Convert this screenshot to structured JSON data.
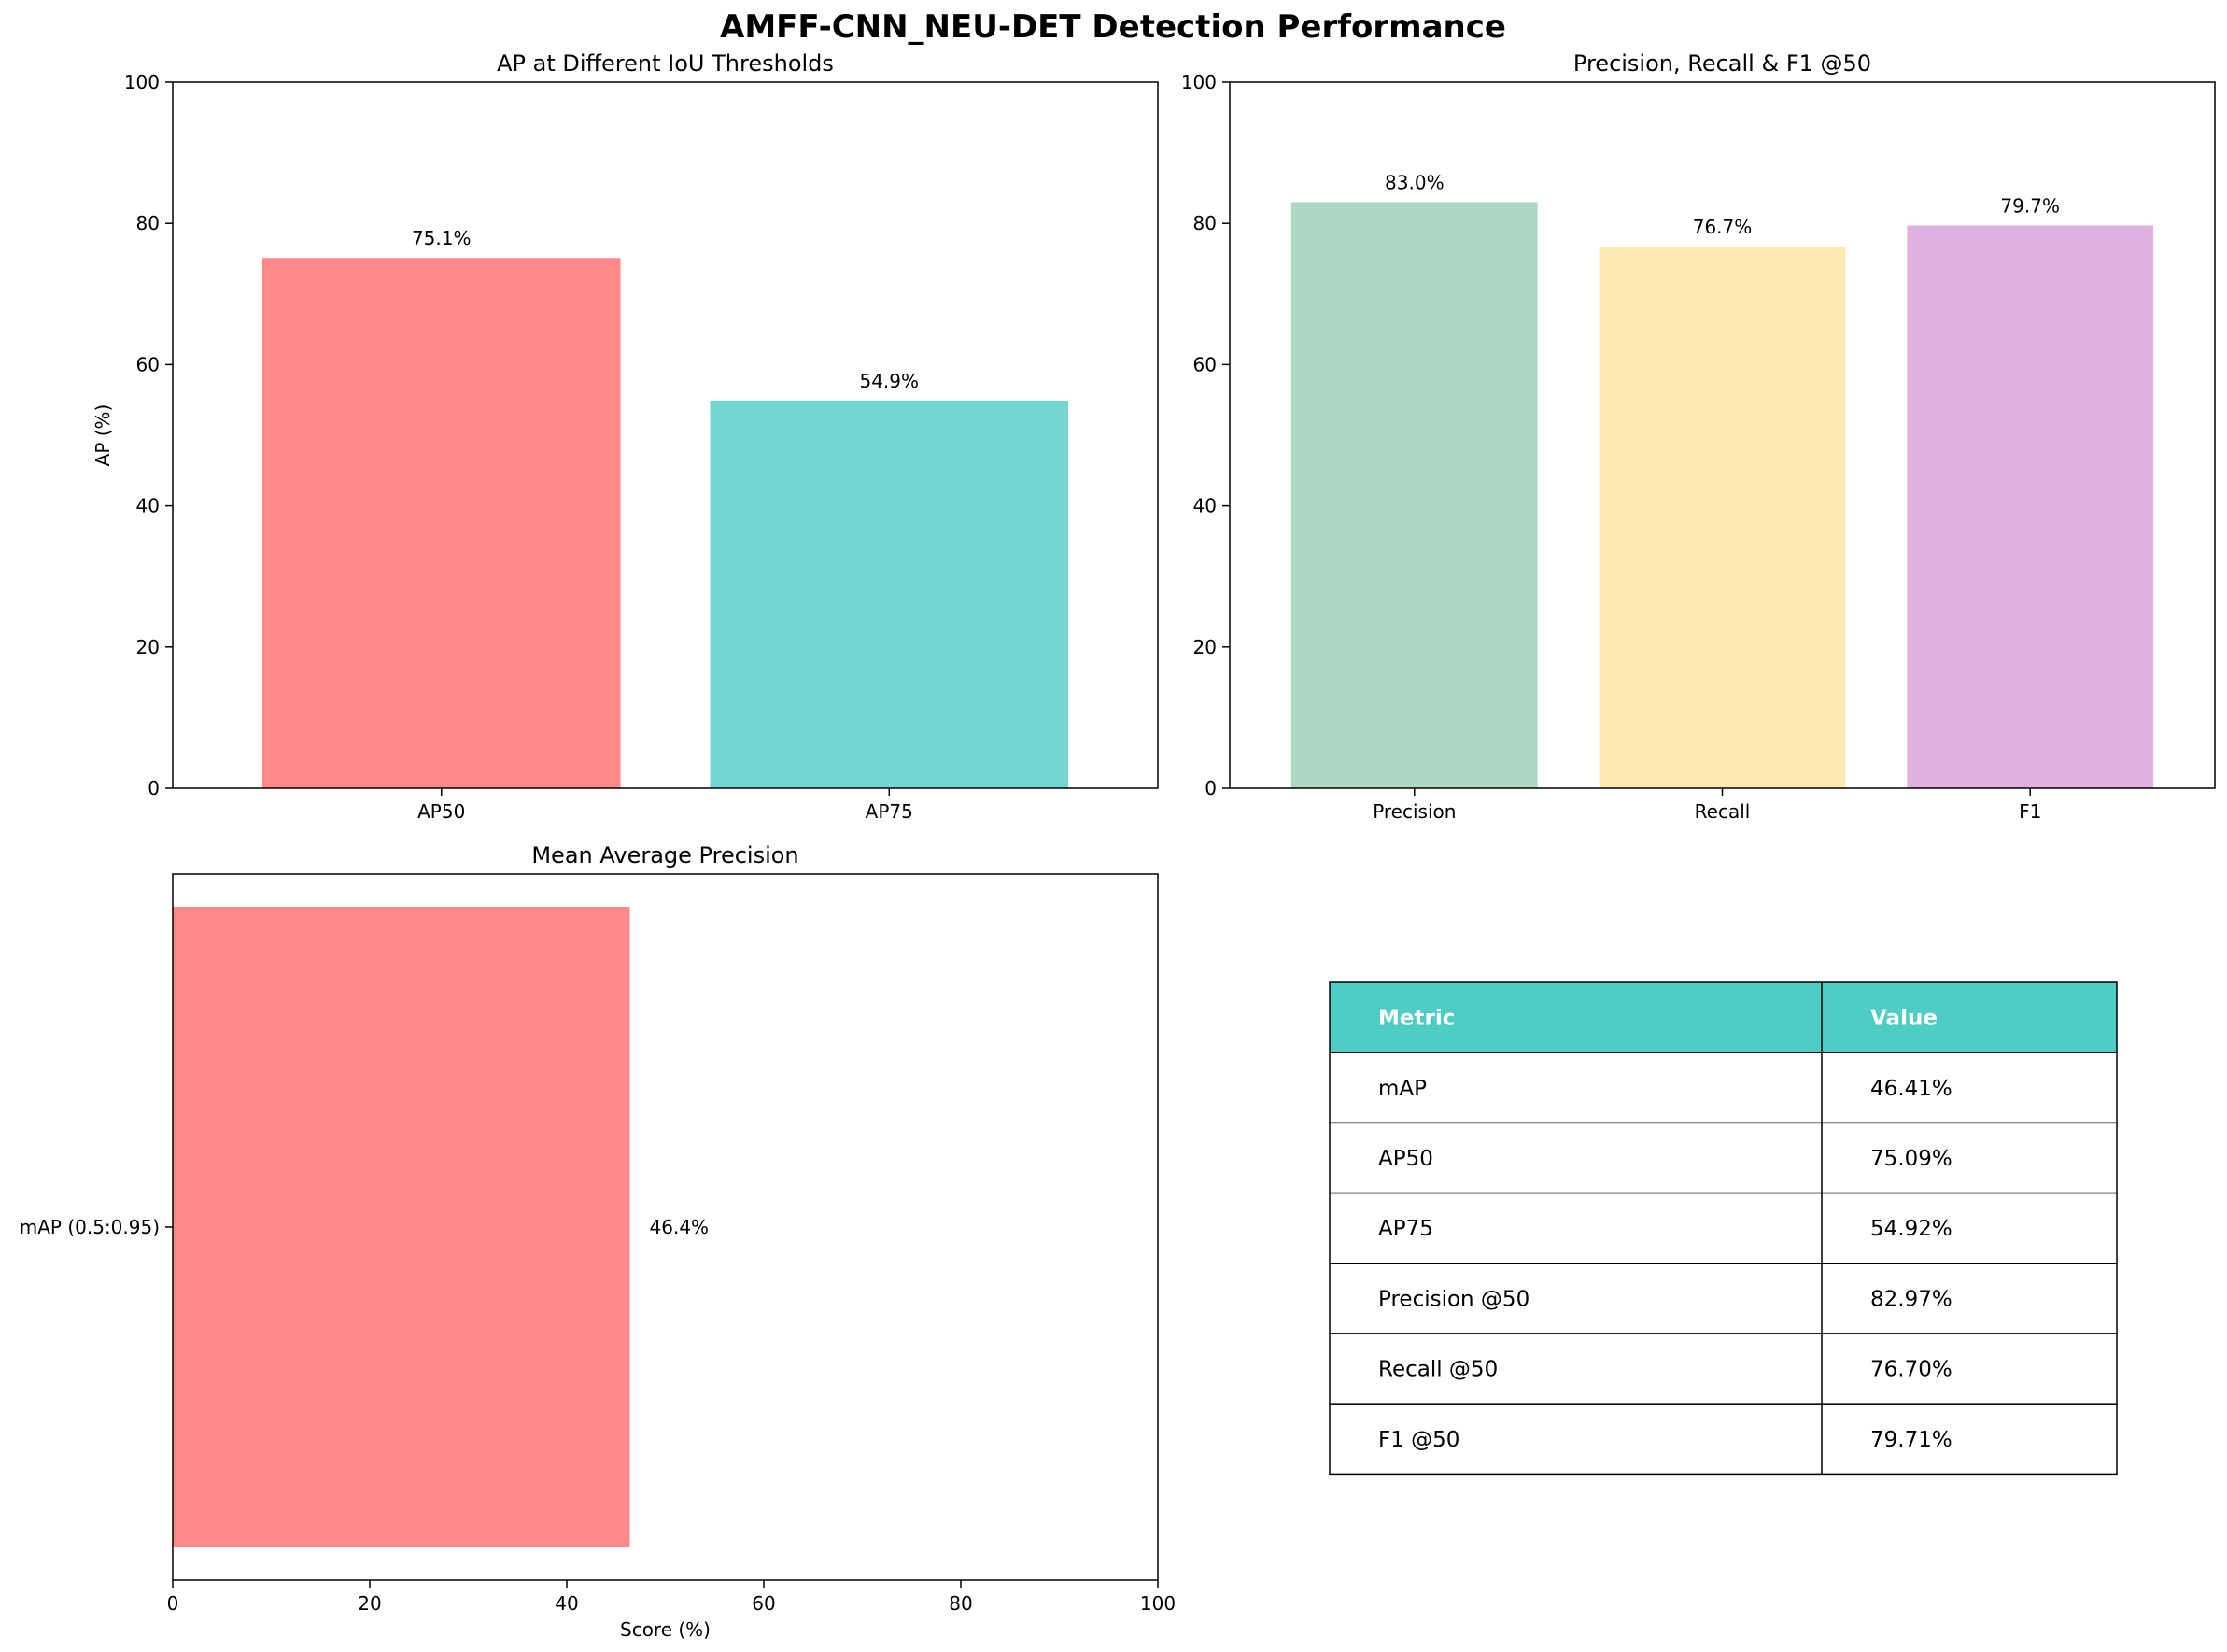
{
  "figure": {
    "title": "AMFF-CNN_NEU-DET Detection Performance"
  },
  "colors": {
    "ap50": "#FF8888",
    "ap75": "#73D7D1",
    "precision": "#ACD8C4",
    "recall": "#FFEAB4",
    "f1": "#E1B2E1",
    "map": "#FF8888",
    "table_header": "#4ECDC4"
  },
  "chart_data": [
    {
      "type": "bar",
      "title": "AP at Different IoU Thresholds",
      "categories": [
        "AP50",
        "AP75"
      ],
      "values": [
        75.1,
        54.9
      ],
      "value_labels": [
        "75.1%",
        "54.9%"
      ],
      "colors": [
        "#FF8888",
        "#73D7D1"
      ],
      "xlabel": "",
      "ylabel": "AP (%)",
      "ylim": [
        0,
        100
      ],
      "yticks": [
        0,
        20,
        40,
        60,
        80,
        100
      ],
      "grid": false
    },
    {
      "type": "bar",
      "title": "Precision, Recall & F1 @50",
      "categories": [
        "Precision",
        "Recall",
        "F1"
      ],
      "values": [
        83.0,
        76.7,
        79.7
      ],
      "value_labels": [
        "83.0%",
        "76.7%",
        "79.7%"
      ],
      "colors": [
        "#ACD8C4",
        "#FFEAB4",
        "#E1B2E1"
      ],
      "xlabel": "",
      "ylabel": "",
      "ylim": [
        0,
        100
      ],
      "yticks": [
        0,
        20,
        40,
        60,
        80,
        100
      ],
      "grid": false
    },
    {
      "type": "bar",
      "orientation": "horizontal",
      "title": "Mean Average Precision",
      "categories": [
        "mAP (0.5:0.95)"
      ],
      "values": [
        46.4
      ],
      "value_labels": [
        "46.4%"
      ],
      "colors": [
        "#FF8888"
      ],
      "xlabel": "Score (%)",
      "ylabel": "",
      "xlim": [
        0,
        100
      ],
      "xticks": [
        0,
        20,
        40,
        60,
        80,
        100
      ],
      "grid": false
    },
    {
      "type": "table",
      "columns": [
        "Metric",
        "Value"
      ],
      "rows": [
        [
          "mAP",
          "46.41%"
        ],
        [
          "AP50",
          "75.09%"
        ],
        [
          "AP75",
          "54.92%"
        ],
        [
          "Precision @50",
          "82.97%"
        ],
        [
          "Recall @50",
          "76.70%"
        ],
        [
          "F1 @50",
          "79.71%"
        ]
      ]
    }
  ]
}
